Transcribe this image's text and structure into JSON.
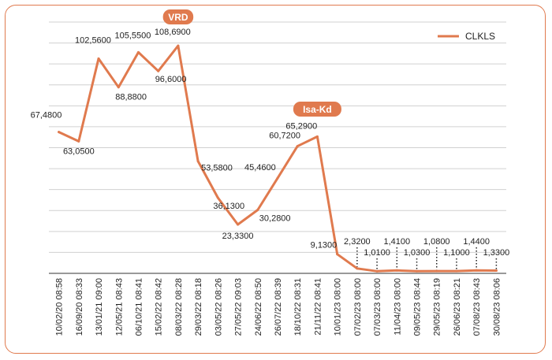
{
  "chart_data": {
    "type": "line",
    "x": [
      "10/02/20 08:58",
      "16/09/20 08:33",
      "13/01/21 09:00",
      "12/05/21 08:43",
      "06/10/21 08:41",
      "15/02/22 08:42",
      "08/03/22 08:28",
      "29/03/22 08:18",
      "03/05/22 08:26",
      "27/05/22 09:03",
      "24/06/22 08:50",
      "26/07/22 08:39",
      "18/10/22 08:31",
      "21/11/22 08:41",
      "10/01/23 08:00",
      "07/02/23 08:00",
      "07/03/23 08:00",
      "11/04/23 08:00",
      "09/05/23 08:44",
      "29/05/23 08:19",
      "26/06/23 08:21",
      "07/08/23 08:43",
      "30/08/23 08:06"
    ],
    "series": [
      {
        "name": "CLKLS",
        "values": [
          67.48,
          63.05,
          102.56,
          88.88,
          105.55,
          96.6,
          108.69,
          53.58,
          36.13,
          23.33,
          30.28,
          45.46,
          60.72,
          65.29,
          9.13,
          2.32,
          1.01,
          1.41,
          1.03,
          1.08,
          1.1,
          1.44,
          1.33
        ],
        "labels": [
          "67,4800",
          "63,0500",
          "102,5600",
          "88,8800",
          "105,5500",
          "96,6000",
          "108,6900",
          "53,5800",
          "36,1300",
          "23,3300",
          "30,2800",
          "45,4600",
          "60,7200",
          "65,2900",
          "9,1300",
          "2,3200",
          "1,0100",
          "1,4100",
          "1,0300",
          "1,0800",
          "1,1000",
          "1,4400",
          "1,3300"
        ]
      }
    ],
    "annotations": [
      {
        "text": "VRD",
        "index": 6
      },
      {
        "text": "Isa-Kd",
        "index": 13
      }
    ],
    "ylim": [
      0,
      120
    ],
    "grid": true,
    "legend": "top-right",
    "color": "#e07a4e"
  }
}
